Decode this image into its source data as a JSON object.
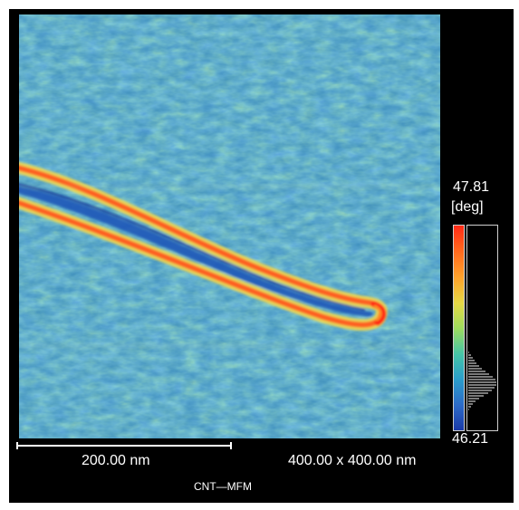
{
  "figure": {
    "caption": "CNT—MFM",
    "image_icon": "mfm-phase-image-icon"
  },
  "scale": {
    "max": "47.81",
    "unit": "[deg]",
    "min": "46.21",
    "gradient_colors": [
      "#ff2a16",
      "#ff7a1d",
      "#f1d53b",
      "#b5df54",
      "#44c6a8",
      "#2aa7c7",
      "#2f6ec9",
      "#1f3fb0"
    ]
  },
  "scalebar": {
    "label": "200.00 nm"
  },
  "scan": {
    "size": "400.00 x 400.00 nm"
  },
  "colors": {
    "background": "#000000",
    "image_base": "#3f8fbd"
  }
}
